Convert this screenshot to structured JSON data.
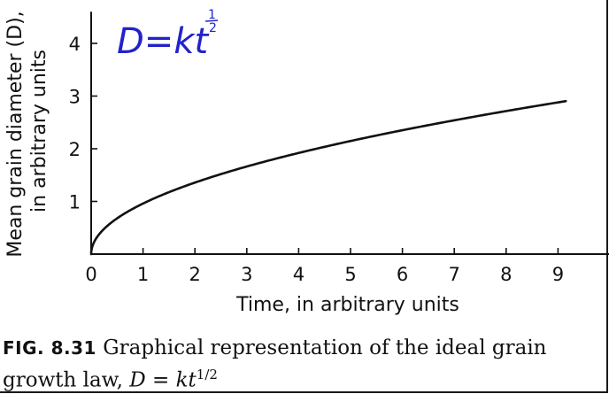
{
  "chart_data": {
    "type": "line",
    "xlabel": "Time, in arbitrary units",
    "ylabel_lines": [
      "Mean grain diameter (D),",
      "in arbitrary units"
    ],
    "xlim": [
      0,
      10
    ],
    "ylim": [
      0,
      4.6
    ],
    "x_ticks": [
      0,
      1,
      2,
      3,
      4,
      5,
      6,
      7,
      8,
      9
    ],
    "y_ticks": [
      1,
      2,
      3,
      4
    ],
    "grid": false,
    "series": [
      {
        "function": "D = k t^(1/2)",
        "k": 0.96,
        "x": [
          0,
          0.1,
          0.25,
          0.5,
          1,
          1.5,
          2,
          2.5,
          3,
          3.5,
          4,
          4.5,
          5,
          5.5,
          6,
          6.5,
          7,
          7.5,
          8,
          8.5,
          9,
          9.15
        ],
        "y": [
          0,
          0.3,
          0.48,
          0.68,
          0.96,
          1.18,
          1.36,
          1.52,
          1.66,
          1.8,
          1.92,
          2.04,
          2.15,
          2.25,
          2.35,
          2.45,
          2.54,
          2.63,
          2.72,
          2.8,
          2.88,
          2.9
        ],
        "color": "#111111"
      }
    ],
    "annotation": {
      "text_main": "D=kt",
      "superscript_num": "1",
      "superscript_den": "2",
      "color": "#2222cc",
      "handwritten": true
    }
  },
  "caption": {
    "label": "FIG. 8.31",
    "text": " Graphical representation of the ideal grain growth law, ",
    "formula": "D = kt",
    "formula_exp": "1/2"
  }
}
